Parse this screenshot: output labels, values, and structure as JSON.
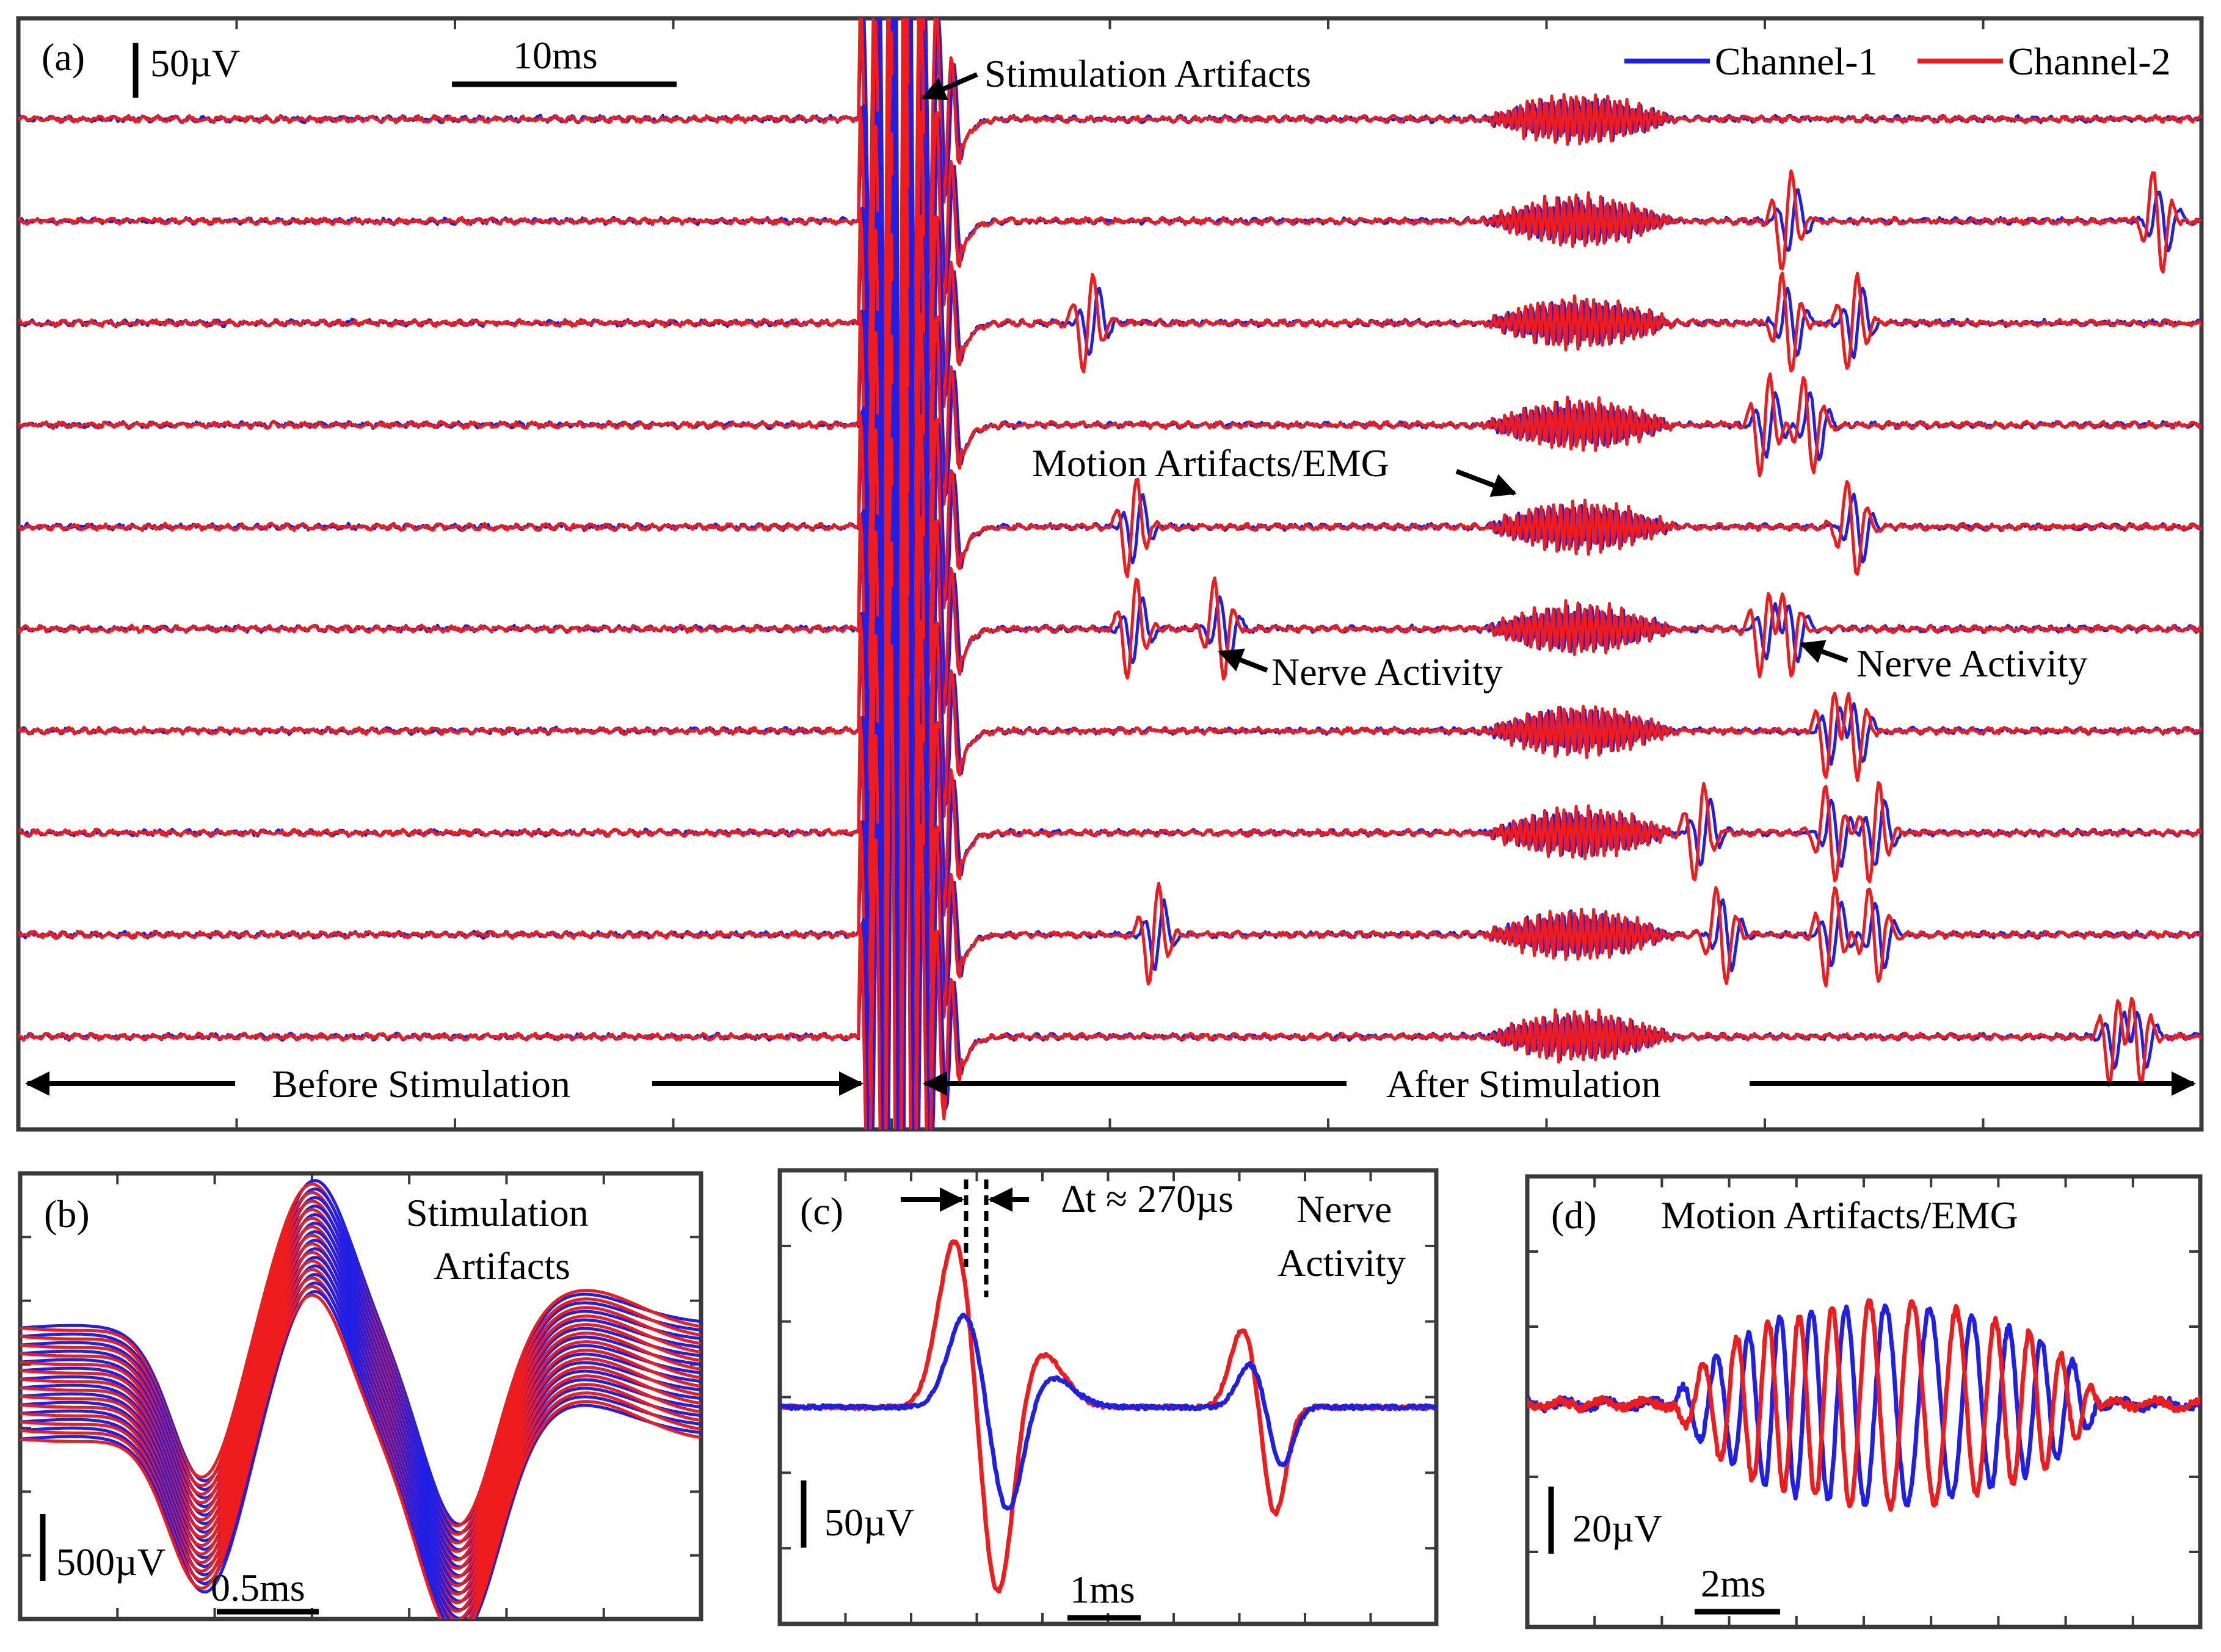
{
  "colors": {
    "channel1": "#1f1fe6",
    "channel2": "#ee1c1c",
    "frame": "#3a3a3a"
  },
  "chart_data": [
    {
      "panel": "(a)",
      "type": "line",
      "title": "",
      "xlabel": "",
      "ylabel": "",
      "n_traces": 10,
      "legend": [
        "Channel-1",
        "Channel-2"
      ],
      "scale_bars": {
        "vertical": "50µV",
        "horizontal": "10ms"
      },
      "xlim_ms": [
        0,
        100
      ],
      "stimulation_ms": 40,
      "regions": {
        "before": "Before Stimulation",
        "after": "After Stimulation"
      },
      "annotations": {
        "stim": "Stimulation Artifacts",
        "motion": "Motion Artifacts/EMG",
        "nerve_left": "Nerve Activity",
        "nerve_right": "Nerve Activity"
      },
      "emg_bursts_ms": [
        [
          67,
          76
        ],
        [
          67,
          76
        ],
        [
          67,
          76
        ],
        [
          67,
          76
        ],
        [
          67,
          76
        ],
        [
          67,
          76
        ],
        [
          67,
          76
        ],
        [
          67,
          76
        ],
        [
          67,
          76
        ],
        [
          67,
          76
        ]
      ],
      "nerve_events_ms": [
        [],
        [
          81,
          98
        ],
        [
          49,
          81,
          84
        ],
        [
          80,
          82
        ],
        [
          51,
          84
        ],
        [
          51,
          55,
          80,
          81
        ],
        [
          83,
          84
        ],
        [
          77,
          83,
          85
        ],
        [
          52,
          78,
          83,
          85
        ],
        [
          96,
          97
        ]
      ]
    },
    {
      "panel": "(b)",
      "type": "line",
      "title": "Stimulation Artifacts",
      "n_traces": 14,
      "scale_bars": {
        "vertical": "500µV",
        "horizontal": "0.5ms"
      },
      "waveform": "biphasic"
    },
    {
      "panel": "(c)",
      "type": "line",
      "title": "Nerve Activity",
      "delta_label": "∆t ≈ 270µs",
      "delay_us": 270,
      "scale_bars": {
        "vertical": "50µV",
        "horizontal": "1ms"
      }
    },
    {
      "panel": "(d)",
      "type": "line",
      "title": "Motion Artifacts/EMG",
      "scale_bars": {
        "vertical": "20µV",
        "horizontal": "2ms"
      }
    }
  ]
}
